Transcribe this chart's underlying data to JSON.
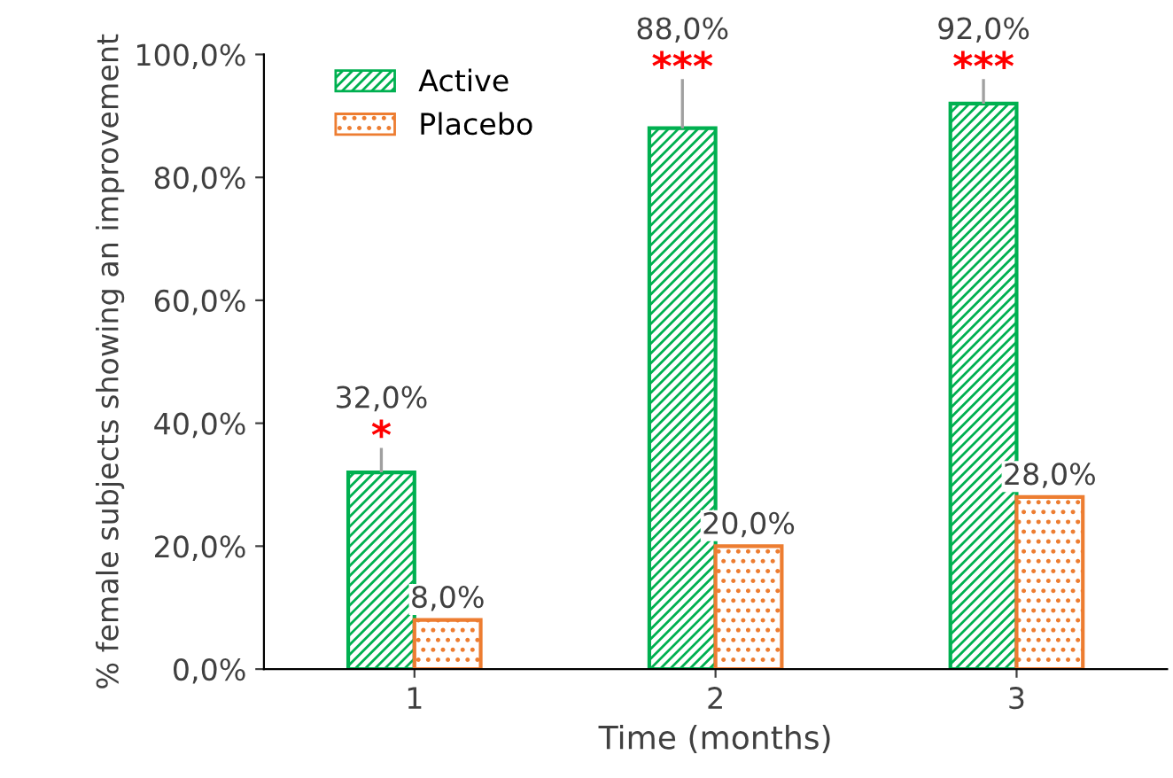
{
  "chart_data": {
    "type": "bar",
    "xlabel": "Time (months)",
    "ylabel": "% female subjects showing an improvement",
    "categories": [
      "1",
      "2",
      "3"
    ],
    "series": [
      {
        "name": "Active",
        "color": "#00b050",
        "values": [
          32,
          88,
          92
        ],
        "errors": [
          [
            32,
            36
          ],
          [
            88,
            96
          ],
          [
            92,
            96
          ]
        ],
        "value_labels": [
          "32,0%",
          "88,0%",
          "92,0%"
        ]
      },
      {
        "name": "Placebo",
        "color": "#ed7d31",
        "values": [
          8,
          20,
          28
        ],
        "value_labels": [
          "8,0%",
          "20,0%",
          "28,0%"
        ]
      }
    ],
    "ylim": [
      0,
      100
    ],
    "yticks": [
      {
        "value": 0,
        "label": "0,0%"
      },
      {
        "value": 20,
        "label": "20,0%"
      },
      {
        "value": 40,
        "label": "40,0%"
      },
      {
        "value": 60,
        "label": "60,0%"
      },
      {
        "value": 80,
        "label": "80,0%"
      },
      {
        "value": 100,
        "label": "100,0%"
      }
    ],
    "annotations": [
      "*",
      "***",
      "***"
    ],
    "grid": false,
    "legend": "top left"
  }
}
